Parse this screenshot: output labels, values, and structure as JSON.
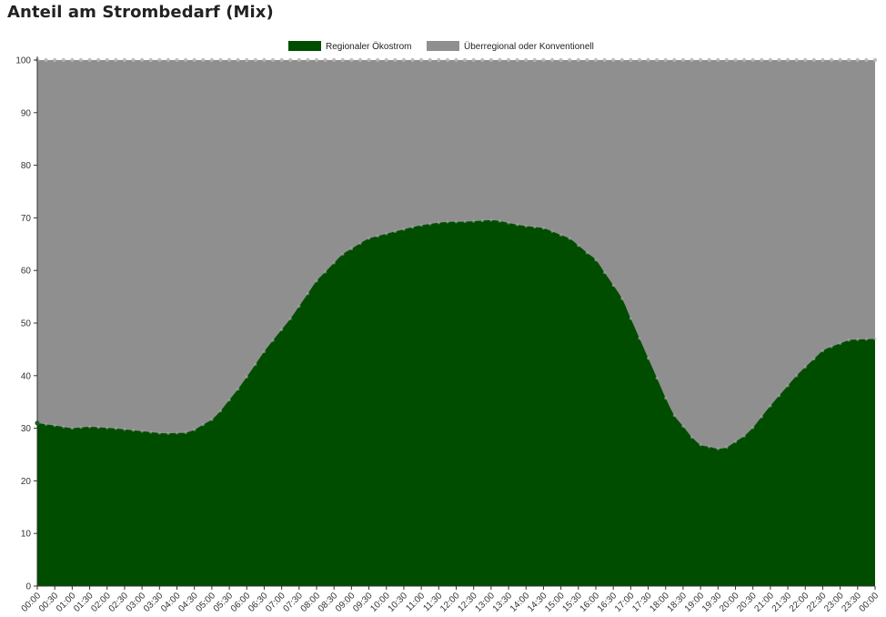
{
  "title": "Anteil am Strombedarf (Mix)",
  "colors": {
    "green": "#004d00",
    "gray": "#8f8f8f",
    "marker": "#b5b5b5"
  },
  "chart_data": {
    "type": "area",
    "stacked": true,
    "title": "Anteil am Strombedarf (Mix)",
    "xlabel": "",
    "ylabel": "",
    "ylim": [
      0,
      100
    ],
    "yticks": [
      0,
      10,
      20,
      30,
      40,
      50,
      60,
      70,
      80,
      90,
      100
    ],
    "grid": false,
    "legend_position": "top-center",
    "x_labels": [
      "00:00",
      "00:30",
      "01:00",
      "01:30",
      "02:00",
      "02:30",
      "03:00",
      "03:30",
      "04:00",
      "04:30",
      "05:00",
      "05:30",
      "06:00",
      "06:30",
      "07:00",
      "07:30",
      "08:00",
      "08:30",
      "09:00",
      "09:30",
      "10:00",
      "10:30",
      "11:00",
      "11:30",
      "12:00",
      "12:30",
      "13:00",
      "13:30",
      "14:00",
      "14:30",
      "15:00",
      "15:30",
      "16:00",
      "16:30",
      "17:00",
      "17:30",
      "18:00",
      "18:30",
      "19:00",
      "19:30",
      "20:00",
      "20:30",
      "21:00",
      "21:30",
      "22:00",
      "22:30",
      "23:00",
      "23:30",
      "00:00"
    ],
    "series": [
      {
        "name": "Regionaler Ökostrom",
        "color": "#004d00",
        "values": [
          31,
          30,
          30.3,
          30,
          29.5,
          29,
          29.2,
          32,
          38,
          45,
          51,
          58,
          63,
          66,
          67.3,
          68.5,
          69.2,
          69.3,
          69.6,
          68.6,
          68,
          66,
          62,
          55,
          44,
          33,
          27,
          25.9,
          29,
          35,
          40.5,
          45,
          46.8,
          47
        ]
      },
      {
        "name": "Überregional oder Konventionell",
        "color": "#8f8f8f",
        "values": [
          69,
          70,
          69.7,
          70,
          70.5,
          71,
          70.8,
          68,
          62,
          55,
          49,
          42,
          37,
          34,
          32.7,
          31.5,
          30.8,
          30.7,
          30.4,
          31.4,
          32,
          34,
          38,
          45,
          56,
          67,
          73,
          74.1,
          71,
          65,
          59.5,
          55,
          53.2,
          53
        ]
      }
    ],
    "x_positions": [
      0,
      1.4,
      2,
      3,
      4,
      5,
      6,
      7,
      8,
      9,
      10,
      11,
      12,
      13,
      14,
      15,
      16,
      17,
      18,
      19,
      20,
      21,
      22,
      23,
      24,
      25,
      26,
      27,
      28,
      29,
      30,
      31,
      32,
      33,
      34,
      35,
      36,
      37,
      38,
      39,
      40,
      41,
      42,
      43,
      44,
      45,
      46,
      47,
      48
    ]
  }
}
